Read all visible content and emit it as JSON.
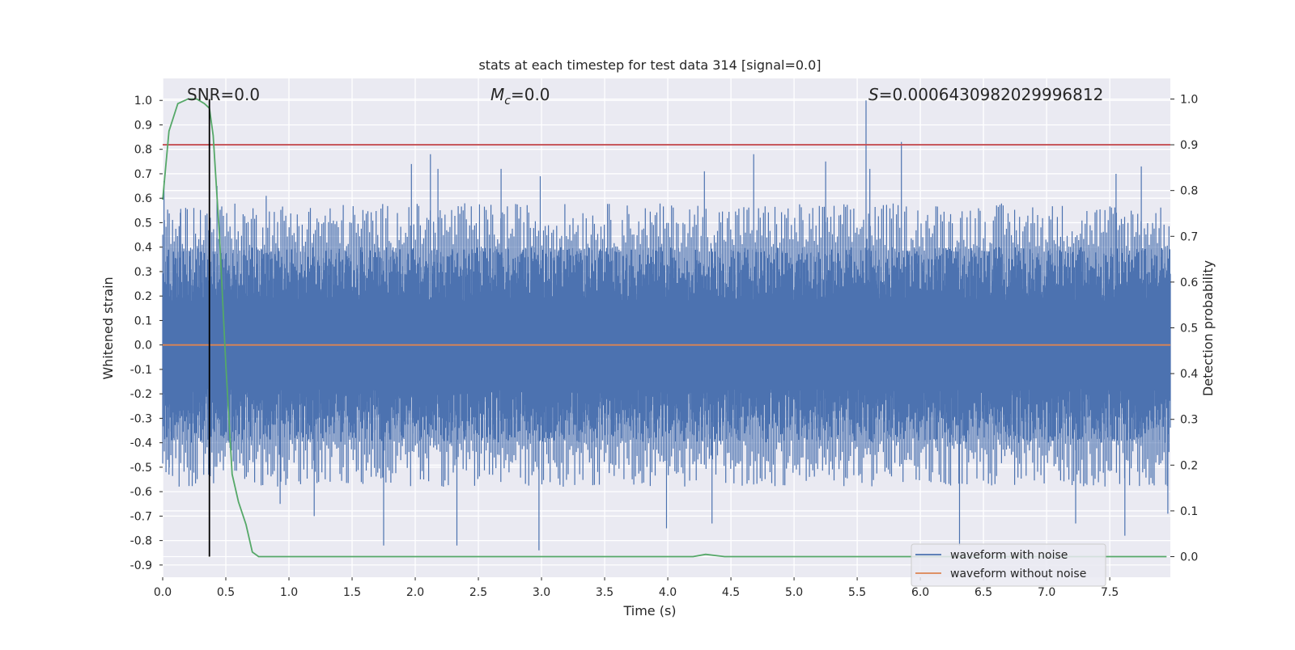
{
  "chart_data": {
    "type": "line",
    "title": "stats at each timestep for test data 314 [signal=0.0]",
    "xlabel": "Time (s)",
    "ylabel_left": "Whitened strain",
    "ylabel_right": "Detection probability",
    "xlim": [
      0.0,
      7.98
    ],
    "ylim_left": [
      -0.95,
      1.09
    ],
    "ylim_right": [
      -0.045,
      1.045
    ],
    "grid": true,
    "legend_position": "lower-right",
    "x_ticks": [
      "0.0",
      "0.5",
      "1.0",
      "1.5",
      "2.0",
      "2.5",
      "3.0",
      "3.5",
      "4.0",
      "4.5",
      "5.0",
      "5.5",
      "6.0",
      "6.5",
      "7.0",
      "7.5"
    ],
    "x_tick_values": [
      0.0,
      0.5,
      1.0,
      1.5,
      2.0,
      2.5,
      3.0,
      3.5,
      4.0,
      4.5,
      5.0,
      5.5,
      6.0,
      6.5,
      7.0,
      7.5
    ],
    "y_left_ticks": [
      "1.0",
      "0.9",
      "0.8",
      "0.7",
      "0.6",
      "0.5",
      "0.4",
      "0.3",
      "0.2",
      "0.1",
      "0.0",
      "-0.1",
      "-0.2",
      "-0.3",
      "-0.4",
      "-0.5",
      "-0.6",
      "-0.7",
      "-0.8",
      "-0.9"
    ],
    "y_left_tick_values": [
      1.0,
      0.9,
      0.8,
      0.7,
      0.6,
      0.5,
      0.4,
      0.3,
      0.2,
      0.1,
      0.0,
      -0.1,
      -0.2,
      -0.3,
      -0.4,
      -0.5,
      -0.6,
      -0.7,
      -0.8,
      -0.9
    ],
    "y_right_ticks": [
      "1.0",
      "0.9",
      "0.8",
      "0.7",
      "0.6",
      "0.5",
      "0.4",
      "0.3",
      "0.2",
      "0.1",
      "0.0"
    ],
    "y_right_tick_values": [
      1.0,
      0.9,
      0.8,
      0.7,
      0.6,
      0.5,
      0.4,
      0.3,
      0.2,
      0.1,
      0.0
    ],
    "annotations": {
      "snr": "SNR=0.0",
      "mc_symbol": "M",
      "mc_subscript": "c",
      "mc_value": "=0.0",
      "s_symbol": "S",
      "s_value": "=0.000643098202999681 2"
    },
    "threshold_probability": 0.9,
    "marker_time": 0.37,
    "series": [
      {
        "name": "waveform with noise",
        "color": "#4c72b0",
        "axis": "left",
        "envelope_note": "dense noise; band approx [-0.5, 0.5] with spikes",
        "spikes": [
          {
            "x": 0.01,
            "y": 0.67
          },
          {
            "x": 0.05,
            "y": -0.53
          },
          {
            "x": 0.14,
            "y": 0.54
          },
          {
            "x": 0.37,
            "y": -0.79
          },
          {
            "x": 0.43,
            "y": 0.65
          },
          {
            "x": 0.82,
            "y": 0.61
          },
          {
            "x": 0.93,
            "y": -0.65
          },
          {
            "x": 1.2,
            "y": -0.7
          },
          {
            "x": 1.75,
            "y": -0.82
          },
          {
            "x": 1.97,
            "y": 0.74
          },
          {
            "x": 2.12,
            "y": 0.78
          },
          {
            "x": 2.18,
            "y": 0.72
          },
          {
            "x": 2.33,
            "y": -0.82
          },
          {
            "x": 2.68,
            "y": 0.72
          },
          {
            "x": 2.98,
            "y": -0.84
          },
          {
            "x": 2.99,
            "y": 0.69
          },
          {
            "x": 3.99,
            "y": -0.75
          },
          {
            "x": 4.29,
            "y": 0.71
          },
          {
            "x": 4.35,
            "y": -0.73
          },
          {
            "x": 4.68,
            "y": 0.78
          },
          {
            "x": 5.25,
            "y": 0.75
          },
          {
            "x": 5.57,
            "y": 1.0
          },
          {
            "x": 5.6,
            "y": 0.72
          },
          {
            "x": 5.85,
            "y": 0.83
          },
          {
            "x": 6.31,
            "y": -0.82
          },
          {
            "x": 7.23,
            "y": -0.73
          },
          {
            "x": 7.55,
            "y": 0.7
          },
          {
            "x": 7.62,
            "y": -0.78
          },
          {
            "x": 7.75,
            "y": 0.73
          },
          {
            "x": 7.96,
            "y": -0.69
          }
        ]
      },
      {
        "name": "waveform without noise",
        "color": "#dd8452",
        "axis": "left",
        "x": [
          0.0,
          7.98
        ],
        "y": [
          0.0,
          0.0
        ]
      },
      {
        "name": "detection probability",
        "color": "#55a868",
        "axis": "right",
        "x": [
          0.0,
          0.05,
          0.12,
          0.2,
          0.27,
          0.33,
          0.37,
          0.4,
          0.45,
          0.5,
          0.55,
          0.6,
          0.66,
          0.71,
          0.76,
          1.0,
          1.5,
          2.0,
          3.0,
          4.0,
          4.2,
          4.3,
          4.45,
          5.0,
          6.0,
          7.0,
          7.95
        ],
        "y": [
          0.78,
          0.93,
          0.99,
          1.0,
          1.0,
          0.99,
          0.98,
          0.92,
          0.7,
          0.42,
          0.18,
          0.12,
          0.07,
          0.01,
          0.0,
          0.0,
          0.0,
          0.0,
          0.0,
          0.0,
          0.0,
          0.005,
          0.0,
          0.0,
          0.0,
          0.0,
          0.0
        ]
      }
    ]
  },
  "legend": {
    "items": [
      {
        "label": "waveform with noise",
        "color": "#4c72b0"
      },
      {
        "label": "waveform without noise",
        "color": "#dd8452"
      }
    ]
  },
  "colors": {
    "plot_bg": "#eaeaf2",
    "grid": "#ffffff",
    "threshold": "#c44e52",
    "marker": "#000000"
  }
}
